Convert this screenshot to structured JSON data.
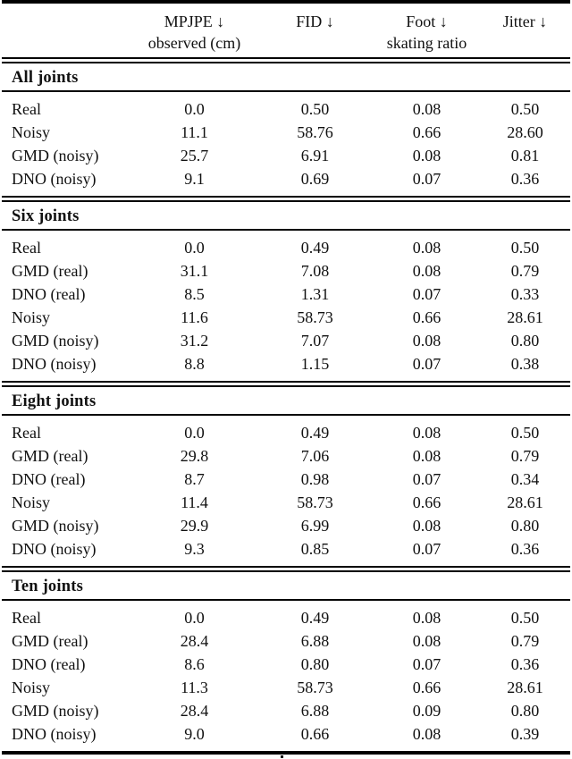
{
  "page": {
    "background": "#ffffff",
    "text_color": "#111111",
    "rule_color": "#000000"
  },
  "table": {
    "header": {
      "columns": [
        {
          "line1": "",
          "line2": ""
        },
        {
          "line1": "MPJPE ↓",
          "line2": "observed (cm)"
        },
        {
          "line1": "FID ↓",
          "line2": ""
        },
        {
          "line1": "Foot ↓",
          "line2": "skating ratio"
        },
        {
          "line1": "Jitter ↓",
          "line2": ""
        }
      ]
    },
    "sections": [
      {
        "title": "All joints",
        "rows": [
          {
            "label": "Real",
            "values": [
              "0.0",
              "0.50",
              "0.08",
              "0.50"
            ]
          },
          {
            "label": "Noisy",
            "values": [
              "11.1",
              "58.76",
              "0.66",
              "28.60"
            ]
          },
          {
            "label": "GMD (noisy)",
            "values": [
              "25.7",
              "6.91",
              "0.08",
              "0.81"
            ]
          },
          {
            "label": "DNO (noisy)",
            "values": [
              "9.1",
              "0.69",
              "0.07",
              "0.36"
            ]
          }
        ]
      },
      {
        "title": "Six joints",
        "rows": [
          {
            "label": "Real",
            "values": [
              "0.0",
              "0.49",
              "0.08",
              "0.50"
            ]
          },
          {
            "label": "GMD (real)",
            "values": [
              "31.1",
              "7.08",
              "0.08",
              "0.79"
            ]
          },
          {
            "label": "DNO (real)",
            "values": [
              "8.5",
              "1.31",
              "0.07",
              "0.33"
            ]
          },
          {
            "label": "Noisy",
            "values": [
              "11.6",
              "58.73",
              "0.66",
              "28.61"
            ]
          },
          {
            "label": "GMD (noisy)",
            "values": [
              "31.2",
              "7.07",
              "0.08",
              "0.80"
            ]
          },
          {
            "label": "DNO (noisy)",
            "values": [
              "8.8",
              "1.15",
              "0.07",
              "0.38"
            ]
          }
        ]
      },
      {
        "title": "Eight joints",
        "rows": [
          {
            "label": "Real",
            "values": [
              "0.0",
              "0.49",
              "0.08",
              "0.50"
            ]
          },
          {
            "label": "GMD (real)",
            "values": [
              "29.8",
              "7.06",
              "0.08",
              "0.79"
            ]
          },
          {
            "label": "DNO (real)",
            "values": [
              "8.7",
              "0.98",
              "0.07",
              "0.34"
            ]
          },
          {
            "label": "Noisy",
            "values": [
              "11.4",
              "58.73",
              "0.66",
              "28.61"
            ]
          },
          {
            "label": "GMD (noisy)",
            "values": [
              "29.9",
              "6.99",
              "0.08",
              "0.80"
            ]
          },
          {
            "label": "DNO (noisy)",
            "values": [
              "9.3",
              "0.85",
              "0.07",
              "0.36"
            ]
          }
        ]
      },
      {
        "title": "Ten joints",
        "rows": [
          {
            "label": "Real",
            "values": [
              "0.0",
              "0.49",
              "0.08",
              "0.50"
            ]
          },
          {
            "label": "GMD (real)",
            "values": [
              "28.4",
              "6.88",
              "0.08",
              "0.79"
            ]
          },
          {
            "label": "DNO (real)",
            "values": [
              "8.6",
              "0.80",
              "0.07",
              "0.36"
            ]
          },
          {
            "label": "Noisy",
            "values": [
              "11.3",
              "58.73",
              "0.66",
              "28.61"
            ]
          },
          {
            "label": "GMD (noisy)",
            "values": [
              "28.4",
              "6.88",
              "0.09",
              "0.80"
            ]
          },
          {
            "label": "DNO (noisy)",
            "values": [
              "9.0",
              "0.66",
              "0.08",
              "0.39"
            ]
          }
        ]
      }
    ]
  },
  "artifacts": {
    "caption_dot": "."
  }
}
